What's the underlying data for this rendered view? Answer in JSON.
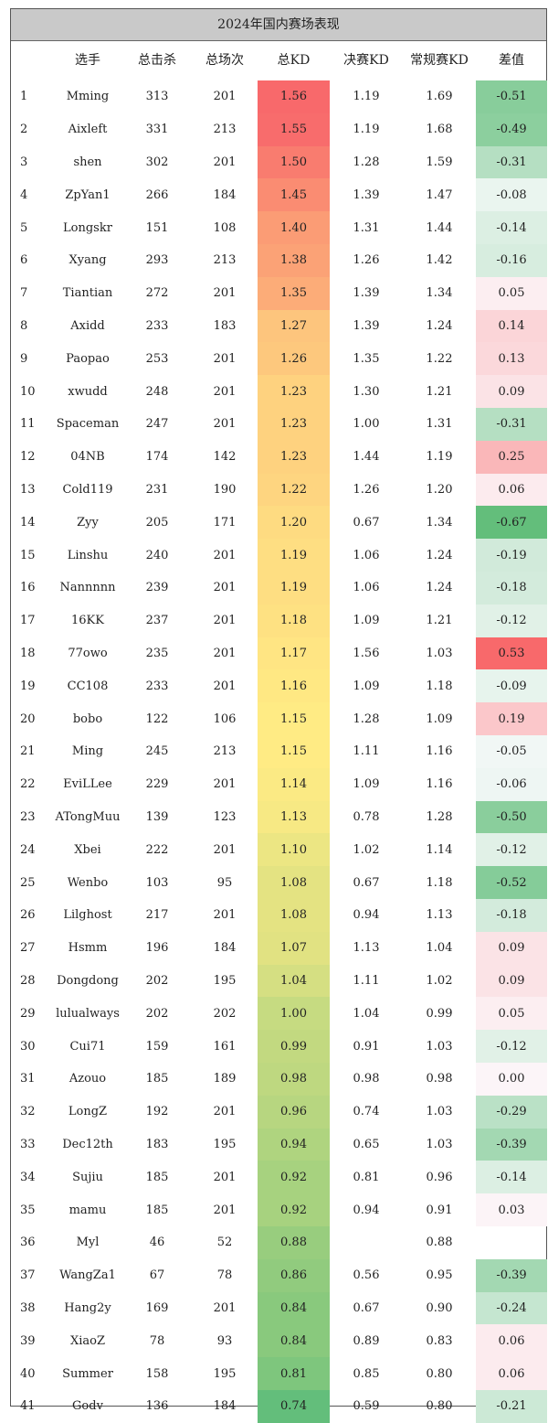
{
  "title": "2024年国内赛场表现",
  "headers": [
    "选手",
    "总击杀",
    "总场次",
    "总KD",
    "决赛KD",
    "常规赛KD",
    "差值"
  ],
  "rows": [
    {
      "rank": "1",
      "player": "Mming",
      "kills": "313",
      "matches": "201",
      "kd": "1.56",
      "final_kd": "1.19",
      "regular_kd": "1.69",
      "diff": "-0.51"
    },
    {
      "rank": "2",
      "player": "Aixleft",
      "kills": "331",
      "matches": "213",
      "kd": "1.55",
      "final_kd": "1.19",
      "regular_kd": "1.68",
      "diff": "-0.49"
    },
    {
      "rank": "3",
      "player": "shen",
      "kills": "302",
      "matches": "201",
      "kd": "1.50",
      "final_kd": "1.28",
      "regular_kd": "1.59",
      "diff": "-0.31"
    },
    {
      "rank": "4",
      "player": "ZpYan1",
      "kills": "266",
      "matches": "184",
      "kd": "1.45",
      "final_kd": "1.39",
      "regular_kd": "1.47",
      "diff": "-0.08"
    },
    {
      "rank": "5",
      "player": "Longskr",
      "kills": "151",
      "matches": "108",
      "kd": "1.40",
      "final_kd": "1.31",
      "regular_kd": "1.44",
      "diff": "-0.14"
    },
    {
      "rank": "6",
      "player": "Xyang",
      "kills": "293",
      "matches": "213",
      "kd": "1.38",
      "final_kd": "1.26",
      "regular_kd": "1.42",
      "diff": "-0.16"
    },
    {
      "rank": "7",
      "player": "Tiantian",
      "kills": "272",
      "matches": "201",
      "kd": "1.35",
      "final_kd": "1.39",
      "regular_kd": "1.34",
      "diff": "0.05"
    },
    {
      "rank": "8",
      "player": "Axidd",
      "kills": "233",
      "matches": "183",
      "kd": "1.27",
      "final_kd": "1.39",
      "regular_kd": "1.24",
      "diff": "0.14"
    },
    {
      "rank": "9",
      "player": "Paopao",
      "kills": "253",
      "matches": "201",
      "kd": "1.26",
      "final_kd": "1.35",
      "regular_kd": "1.22",
      "diff": "0.13"
    },
    {
      "rank": "10",
      "player": "xwudd",
      "kills": "248",
      "matches": "201",
      "kd": "1.23",
      "final_kd": "1.30",
      "regular_kd": "1.21",
      "diff": "0.09"
    },
    {
      "rank": "11",
      "player": "Spaceman",
      "kills": "247",
      "matches": "201",
      "kd": "1.23",
      "final_kd": "1.00",
      "regular_kd": "1.31",
      "diff": "-0.31"
    },
    {
      "rank": "12",
      "player": "04NB",
      "kills": "174",
      "matches": "142",
      "kd": "1.23",
      "final_kd": "1.44",
      "regular_kd": "1.19",
      "diff": "0.25"
    },
    {
      "rank": "13",
      "player": "Cold119",
      "kills": "231",
      "matches": "190",
      "kd": "1.22",
      "final_kd": "1.26",
      "regular_kd": "1.20",
      "diff": "0.06"
    },
    {
      "rank": "14",
      "player": "Zyy",
      "kills": "205",
      "matches": "171",
      "kd": "1.20",
      "final_kd": "0.67",
      "regular_kd": "1.34",
      "diff": "-0.67"
    },
    {
      "rank": "15",
      "player": "Linshu",
      "kills": "240",
      "matches": "201",
      "kd": "1.19",
      "final_kd": "1.06",
      "regular_kd": "1.24",
      "diff": "-0.19"
    },
    {
      "rank": "16",
      "player": "Nannnnn",
      "kills": "239",
      "matches": "201",
      "kd": "1.19",
      "final_kd": "1.06",
      "regular_kd": "1.24",
      "diff": "-0.18"
    },
    {
      "rank": "17",
      "player": "16KK",
      "kills": "237",
      "matches": "201",
      "kd": "1.18",
      "final_kd": "1.09",
      "regular_kd": "1.21",
      "diff": "-0.12"
    },
    {
      "rank": "18",
      "player": "77owo",
      "kills": "235",
      "matches": "201",
      "kd": "1.17",
      "final_kd": "1.56",
      "regular_kd": "1.03",
      "diff": "0.53"
    },
    {
      "rank": "19",
      "player": "CC108",
      "kills": "233",
      "matches": "201",
      "kd": "1.16",
      "final_kd": "1.09",
      "regular_kd": "1.18",
      "diff": "-0.09"
    },
    {
      "rank": "20",
      "player": "bobo",
      "kills": "122",
      "matches": "106",
      "kd": "1.15",
      "final_kd": "1.28",
      "regular_kd": "1.09",
      "diff": "0.19"
    },
    {
      "rank": "21",
      "player": "Ming",
      "kills": "245",
      "matches": "213",
      "kd": "1.15",
      "final_kd": "1.11",
      "regular_kd": "1.16",
      "diff": "-0.05"
    },
    {
      "rank": "22",
      "player": "EviLLee",
      "kills": "229",
      "matches": "201",
      "kd": "1.14",
      "final_kd": "1.09",
      "regular_kd": "1.16",
      "diff": "-0.06"
    },
    {
      "rank": "23",
      "player": "ATongMuu",
      "kills": "139",
      "matches": "123",
      "kd": "1.13",
      "final_kd": "0.78",
      "regular_kd": "1.28",
      "diff": "-0.50"
    },
    {
      "rank": "24",
      "player": "Xbei",
      "kills": "222",
      "matches": "201",
      "kd": "1.10",
      "final_kd": "1.02",
      "regular_kd": "1.14",
      "diff": "-0.12"
    },
    {
      "rank": "25",
      "player": "Wenbo",
      "kills": "103",
      "matches": "95",
      "kd": "1.08",
      "final_kd": "0.67",
      "regular_kd": "1.18",
      "diff": "-0.52"
    },
    {
      "rank": "26",
      "player": "Lilghost",
      "kills": "217",
      "matches": "201",
      "kd": "1.08",
      "final_kd": "0.94",
      "regular_kd": "1.13",
      "diff": "-0.18"
    },
    {
      "rank": "27",
      "player": "Hsmm",
      "kills": "196",
      "matches": "184",
      "kd": "1.07",
      "final_kd": "1.13",
      "regular_kd": "1.04",
      "diff": "0.09"
    },
    {
      "rank": "28",
      "player": "Dongdong",
      "kills": "202",
      "matches": "195",
      "kd": "1.04",
      "final_kd": "1.11",
      "regular_kd": "1.02",
      "diff": "0.09"
    },
    {
      "rank": "29",
      "player": "lulualways",
      "kills": "202",
      "matches": "202",
      "kd": "1.00",
      "final_kd": "1.04",
      "regular_kd": "0.99",
      "diff": "0.05"
    },
    {
      "rank": "30",
      "player": "Cui71",
      "kills": "159",
      "matches": "161",
      "kd": "0.99",
      "final_kd": "0.91",
      "regular_kd": "1.03",
      "diff": "-0.12"
    },
    {
      "rank": "31",
      "player": "Azouo",
      "kills": "185",
      "matches": "189",
      "kd": "0.98",
      "final_kd": "0.98",
      "regular_kd": "0.98",
      "diff": "0.00"
    },
    {
      "rank": "32",
      "player": "LongZ",
      "kills": "192",
      "matches": "201",
      "kd": "0.96",
      "final_kd": "0.74",
      "regular_kd": "1.03",
      "diff": "-0.29"
    },
    {
      "rank": "33",
      "player": "Dec12th",
      "kills": "183",
      "matches": "195",
      "kd": "0.94",
      "final_kd": "0.65",
      "regular_kd": "1.03",
      "diff": "-0.39"
    },
    {
      "rank": "34",
      "player": "Sujiu",
      "kills": "185",
      "matches": "201",
      "kd": "0.92",
      "final_kd": "0.81",
      "regular_kd": "0.96",
      "diff": "-0.14"
    },
    {
      "rank": "35",
      "player": "mamu",
      "kills": "185",
      "matches": "201",
      "kd": "0.92",
      "final_kd": "0.94",
      "regular_kd": "0.91",
      "diff": "0.03"
    },
    {
      "rank": "36",
      "player": "Myl",
      "kills": "46",
      "matches": "52",
      "kd": "0.88",
      "final_kd": "",
      "regular_kd": "0.88",
      "diff": ""
    },
    {
      "rank": "37",
      "player": "WangZa1",
      "kills": "67",
      "matches": "78",
      "kd": "0.86",
      "final_kd": "0.56",
      "regular_kd": "0.95",
      "diff": "-0.39"
    },
    {
      "rank": "38",
      "player": "Hang2y",
      "kills": "169",
      "matches": "201",
      "kd": "0.84",
      "final_kd": "0.67",
      "regular_kd": "0.90",
      "diff": "-0.24"
    },
    {
      "rank": "39",
      "player": "XiaoZ",
      "kills": "78",
      "matches": "93",
      "kd": "0.84",
      "final_kd": "0.89",
      "regular_kd": "0.83",
      "diff": "0.06"
    },
    {
      "rank": "40",
      "player": "Summer",
      "kills": "158",
      "matches": "195",
      "kd": "0.81",
      "final_kd": "0.85",
      "regular_kd": "0.80",
      "diff": "0.06"
    },
    {
      "rank": "41",
      "player": "Godv",
      "kills": "136",
      "matches": "184",
      "kd": "0.74",
      "final_kd": "0.59",
      "regular_kd": "0.80",
      "diff": "-0.21"
    }
  ],
  "colors": {
    "title_bg": "#c9c9c9",
    "kd_high": "#f8696b",
    "kd_mid": "#ffeb84",
    "kd_low": "#63be7b",
    "diff_positive": "#f8696b",
    "diff_negative": "#63be7b",
    "diff_neutral": "#fcfcff"
  }
}
